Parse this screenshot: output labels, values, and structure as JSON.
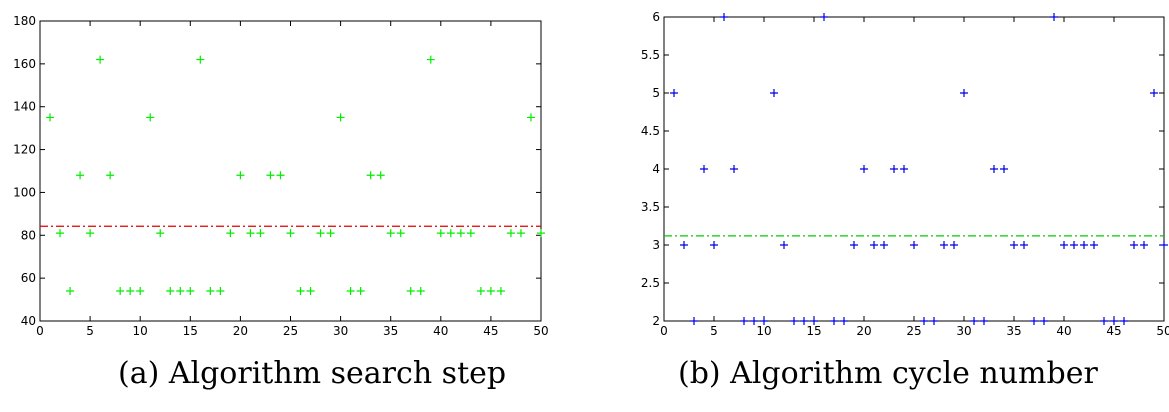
{
  "chart_data": [
    {
      "type": "scatter",
      "caption": "(a) Algorithm search step",
      "x": [
        1,
        2,
        3,
        4,
        5,
        6,
        7,
        8,
        9,
        10,
        11,
        12,
        13,
        14,
        15,
        16,
        17,
        18,
        19,
        20,
        21,
        22,
        23,
        24,
        25,
        26,
        27,
        28,
        29,
        30,
        31,
        32,
        33,
        34,
        35,
        36,
        37,
        38,
        39,
        40,
        41,
        42,
        43,
        44,
        45,
        46,
        47,
        48,
        49,
        50
      ],
      "y": [
        135,
        81,
        54,
        108,
        81,
        162,
        108,
        54,
        54,
        54,
        135,
        81,
        54,
        54,
        54,
        162,
        54,
        54,
        81,
        108,
        81,
        81,
        108,
        108,
        81,
        54,
        54,
        81,
        81,
        135,
        54,
        54,
        108,
        108,
        81,
        81,
        54,
        54,
        162,
        81,
        81,
        81,
        81,
        54,
        54,
        54,
        81,
        81,
        135,
        81
      ],
      "mean_line": 84.2,
      "xlim": [
        0,
        50
      ],
      "ylim": [
        40,
        180
      ],
      "xticks": [
        0,
        5,
        10,
        15,
        20,
        25,
        30,
        35,
        40,
        45,
        50
      ],
      "yticks": [
        40,
        60,
        80,
        100,
        120,
        140,
        160,
        180
      ],
      "marker_color": "#00ee00",
      "line_color": "#e00000",
      "marker": "+",
      "line_style": "dash-dot"
    },
    {
      "type": "scatter",
      "caption": "(b) Algorithm cycle number",
      "x": [
        1,
        2,
        3,
        4,
        5,
        6,
        7,
        8,
        9,
        10,
        11,
        12,
        13,
        14,
        15,
        16,
        17,
        18,
        19,
        20,
        21,
        22,
        23,
        24,
        25,
        26,
        27,
        28,
        29,
        30,
        31,
        32,
        33,
        34,
        35,
        36,
        37,
        38,
        39,
        40,
        41,
        42,
        43,
        44,
        45,
        46,
        47,
        48,
        49,
        50
      ],
      "y": [
        5,
        3,
        2,
        4,
        3,
        6,
        4,
        2,
        2,
        2,
        5,
        3,
        2,
        2,
        2,
        6,
        2,
        2,
        3,
        4,
        3,
        3,
        4,
        4,
        3,
        2,
        2,
        3,
        3,
        5,
        2,
        2,
        4,
        4,
        3,
        3,
        2,
        2,
        6,
        3,
        3,
        3,
        3,
        2,
        2,
        2,
        3,
        3,
        5,
        3
      ],
      "mean_line": 3.12,
      "xlim": [
        0,
        50
      ],
      "ylim": [
        2,
        6
      ],
      "xticks": [
        0,
        5,
        10,
        15,
        20,
        25,
        30,
        35,
        40,
        45,
        50
      ],
      "yticks": [
        2,
        2.5,
        3,
        3.5,
        4,
        4.5,
        5,
        5.5,
        6
      ],
      "marker_color": "#0000dd",
      "line_color": "#00cc00",
      "marker": "+",
      "line_style": "dash-dot"
    }
  ]
}
